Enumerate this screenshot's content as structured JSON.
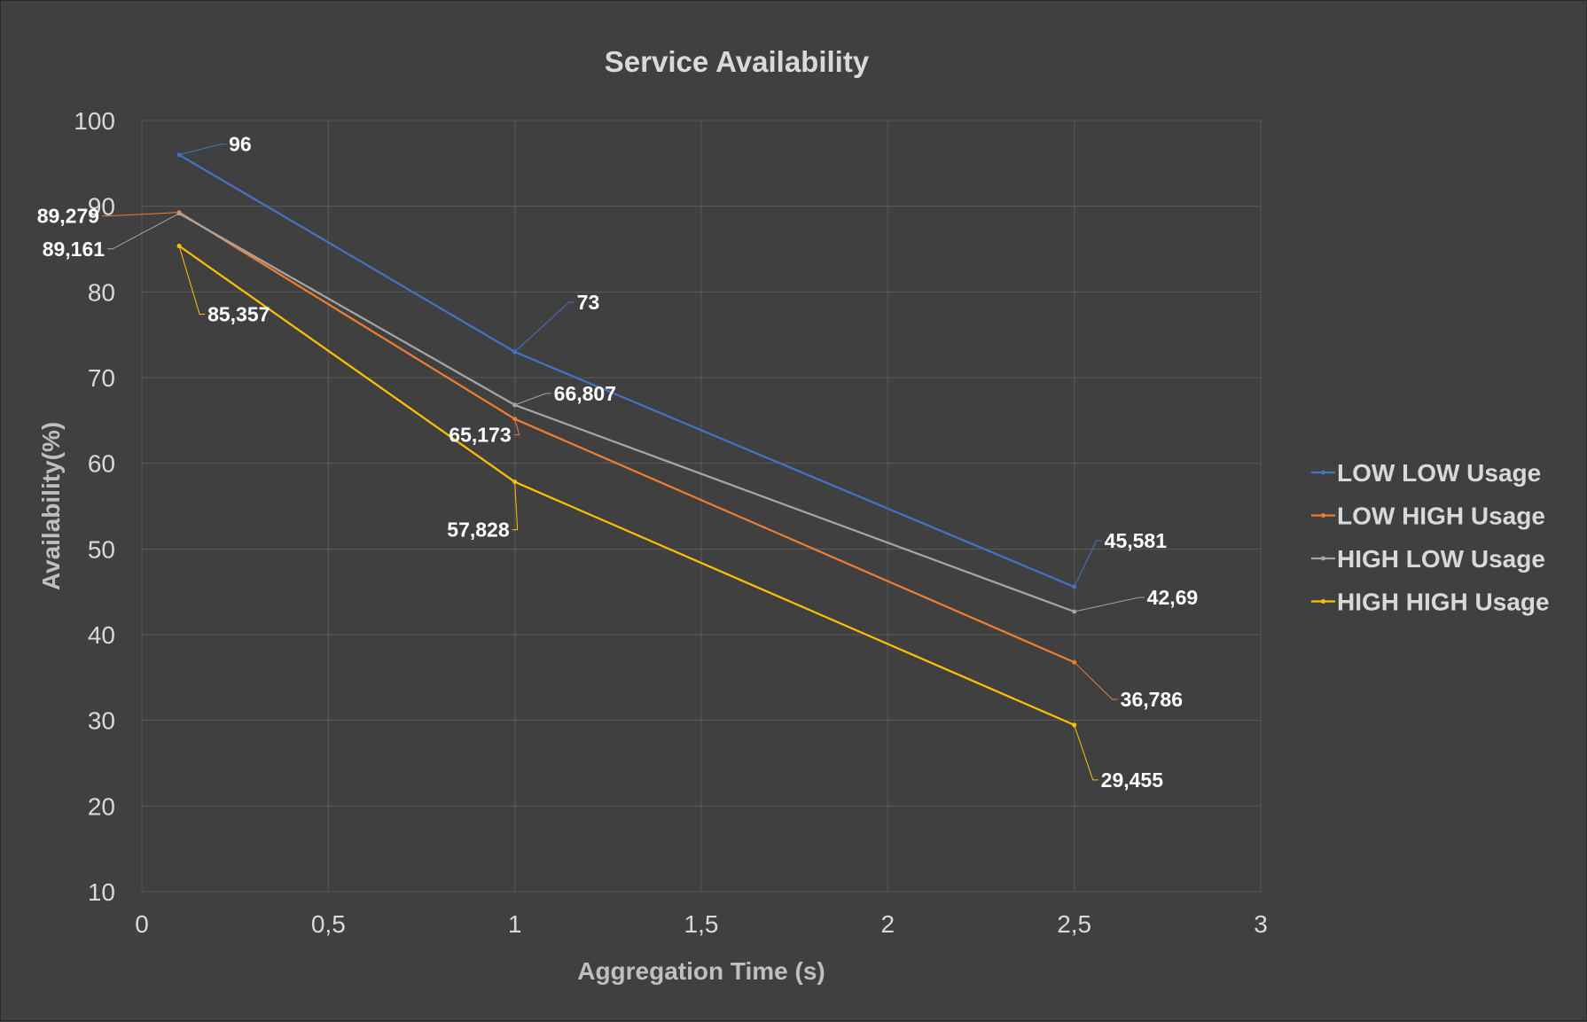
{
  "chart_data": {
    "type": "line",
    "title": "Service Availability",
    "xlabel": "Aggregation Time (s)",
    "ylabel": "Availability(%)",
    "xlim": [
      0,
      3
    ],
    "ylim": [
      10,
      100
    ],
    "x_ticks": [
      {
        "value": 0,
        "label": "0"
      },
      {
        "value": 0.5,
        "label": "0,5"
      },
      {
        "value": 1,
        "label": "1"
      },
      {
        "value": 1.5,
        "label": "1,5"
      },
      {
        "value": 2,
        "label": "2"
      },
      {
        "value": 2.5,
        "label": "2,5"
      },
      {
        "value": 3,
        "label": "3"
      }
    ],
    "y_ticks": [
      {
        "value": 10,
        "label": "10"
      },
      {
        "value": 20,
        "label": "20"
      },
      {
        "value": 30,
        "label": "30"
      },
      {
        "value": 40,
        "label": "40"
      },
      {
        "value": 50,
        "label": "50"
      },
      {
        "value": 60,
        "label": "60"
      },
      {
        "value": 70,
        "label": "70"
      },
      {
        "value": 80,
        "label": "80"
      },
      {
        "value": 90,
        "label": "90"
      },
      {
        "value": 100,
        "label": "100"
      }
    ],
    "grid": true,
    "legend_position": "right",
    "x": [
      0.1,
      1,
      2.5
    ],
    "series": [
      {
        "name": "LOW LOW Usage",
        "color": "#4472C4",
        "values": [
          96,
          73,
          45.581
        ],
        "labels": [
          "96",
          "73",
          "45,581"
        ]
      },
      {
        "name": "LOW HIGH Usage",
        "color": "#ED7D31",
        "values": [
          89.279,
          65.173,
          36.786
        ],
        "labels": [
          "89,279",
          "65,173",
          "36,786"
        ]
      },
      {
        "name": "HIGH LOW Usage",
        "color": "#A5A5A5",
        "values": [
          89.161,
          66.807,
          42.69
        ],
        "labels": [
          "89,161",
          "66,807",
          "42,69"
        ]
      },
      {
        "name": "HIGH HIGH Usage",
        "color": "#FFC000",
        "values": [
          85.357,
          57.828,
          29.455
        ],
        "labels": [
          "85,357",
          "57,828",
          "29,455"
        ]
      }
    ],
    "colors": {
      "background": "#404040",
      "gridline": "#595959",
      "tick_text": "#D9D9D9",
      "data_label_text": "#FFFFFF"
    }
  }
}
